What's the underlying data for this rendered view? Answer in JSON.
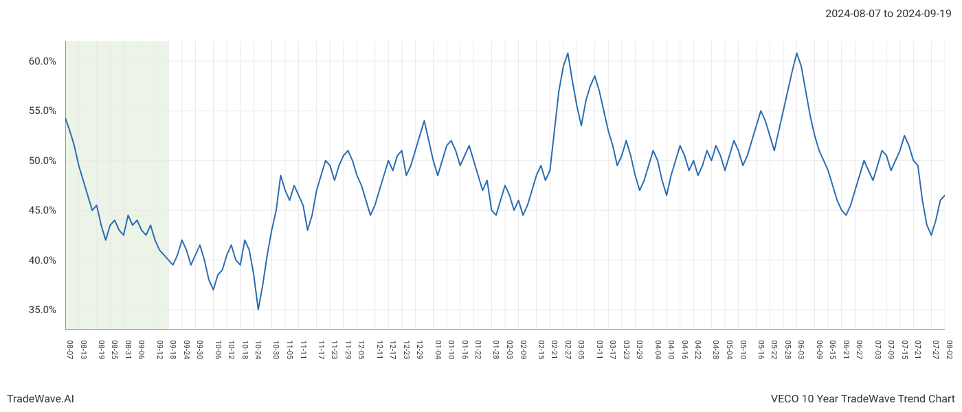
{
  "date_range": "2024-08-07 to 2024-09-19",
  "watermark_left": "TradeWave.AI",
  "watermark_right": "VECO 10 Year TradeWave Trend Chart",
  "chart": {
    "type": "line",
    "background_color": "#ffffff",
    "grid_color": "#e8e8e8",
    "axis_color": "#333333",
    "line_color": "#2b6cb0",
    "line_width": 2,
    "highlight_fill": "#e0ecd8",
    "highlight_opacity": 0.6,
    "highlight_range": [
      "08-07",
      "09-19"
    ],
    "ylim": [
      33,
      62
    ],
    "yticks": [
      35,
      40,
      45,
      50,
      55,
      60
    ],
    "ytick_labels": [
      "35.0%",
      "40.0%",
      "45.0%",
      "50.0%",
      "55.0%",
      "60.0%"
    ],
    "x_labels": [
      "08-07",
      "08-13",
      "08-19",
      "08-25",
      "08-31",
      "09-06",
      "09-12",
      "09-18",
      "09-24",
      "09-30",
      "10-06",
      "10-12",
      "10-18",
      "10-24",
      "10-30",
      "11-05",
      "11-11",
      "11-17",
      "11-23",
      "11-29",
      "12-05",
      "12-11",
      "12-17",
      "12-23",
      "12-29",
      "01-04",
      "01-10",
      "01-16",
      "01-22",
      "01-28",
      "02-03",
      "02-09",
      "02-15",
      "02-21",
      "02-27",
      "03-05",
      "03-11",
      "03-17",
      "03-23",
      "03-29",
      "04-04",
      "04-10",
      "04-16",
      "04-22",
      "04-28",
      "05-04",
      "05-10",
      "05-16",
      "05-22",
      "05-28",
      "06-03",
      "06-09",
      "06-15",
      "06-21",
      "06-27",
      "07-03",
      "07-09",
      "07-15",
      "07-21",
      "07-27",
      "08-02"
    ],
    "values": [
      54.3,
      53.0,
      51.5,
      49.5,
      48.0,
      46.5,
      45.0,
      45.5,
      43.5,
      42.0,
      43.5,
      44.0,
      43.0,
      42.5,
      44.5,
      43.5,
      44.0,
      43.0,
      42.5,
      43.5,
      42.0,
      41.0,
      40.5,
      40.0,
      39.5,
      40.5,
      42.0,
      41.0,
      39.5,
      40.5,
      41.5,
      40.0,
      38.0,
      37.0,
      38.5,
      39.0,
      40.5,
      41.5,
      40.0,
      39.5,
      42.0,
      41.0,
      38.5,
      35.0,
      37.5,
      40.5,
      43.0,
      45.0,
      48.5,
      47.0,
      46.0,
      47.5,
      46.5,
      45.5,
      43.0,
      44.5,
      47.0,
      48.5,
      50.0,
      49.5,
      48.0,
      49.5,
      50.5,
      51.0,
      50.0,
      48.5,
      47.5,
      46.0,
      44.5,
      45.5,
      47.0,
      48.5,
      50.0,
      49.0,
      50.5,
      51.0,
      48.5,
      49.5,
      51.0,
      52.5,
      54.0,
      52.0,
      50.0,
      48.5,
      50.0,
      51.5,
      52.0,
      51.0,
      49.5,
      50.5,
      51.5,
      50.0,
      48.5,
      47.0,
      48.0,
      45.0,
      44.5,
      46.0,
      47.5,
      46.5,
      45.0,
      46.0,
      44.5,
      45.5,
      47.0,
      48.5,
      49.5,
      48.0,
      49.0,
      53.0,
      57.0,
      59.5,
      60.8,
      58.0,
      55.5,
      53.5,
      56.0,
      57.5,
      58.5,
      57.0,
      55.0,
      53.0,
      51.5,
      49.5,
      50.5,
      52.0,
      50.5,
      48.5,
      47.0,
      48.0,
      49.5,
      51.0,
      50.0,
      48.0,
      46.5,
      48.5,
      50.0,
      51.5,
      50.5,
      49.0,
      50.0,
      48.5,
      49.5,
      51.0,
      50.0,
      51.5,
      50.5,
      49.0,
      50.5,
      52.0,
      51.0,
      49.5,
      50.5,
      52.0,
      53.5,
      55.0,
      54.0,
      52.5,
      51.0,
      53.0,
      55.0,
      57.0,
      59.0,
      60.8,
      59.5,
      57.0,
      54.5,
      52.5,
      51.0,
      50.0,
      49.0,
      47.5,
      46.0,
      45.0,
      44.5,
      45.5,
      47.0,
      48.5,
      50.0,
      49.0,
      48.0,
      49.5,
      51.0,
      50.5,
      49.0,
      50.0,
      51.0,
      52.5,
      51.5,
      50.0,
      49.5,
      46.0,
      43.5,
      42.5,
      44.0,
      46.0,
      46.5
    ],
    "x_label_interval": 1,
    "title_fontsize": 16,
    "tick_fontsize": 15,
    "x_tick_fontsize": 11
  }
}
